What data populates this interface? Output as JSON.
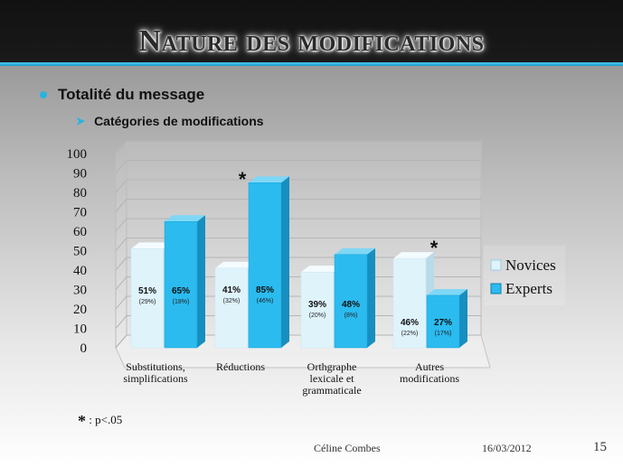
{
  "slide": {
    "title": "Nature des modifications",
    "bullet_level1": "Totalité du message",
    "bullet_level2": "Catégories de modifications",
    "footnote_star": "*",
    "footnote_text": ": p<.05",
    "footer_author": "Céline Combes",
    "footer_date": "16/03/2012",
    "footer_page": "15"
  },
  "colors": {
    "accent": "#2ab2e0",
    "novices_fill": "#dff3fb",
    "experts_fill": "#2bbbef"
  },
  "chart_data": {
    "type": "bar",
    "categories": [
      "Substitutions,\nsimplifications",
      "Réductions",
      "Orthgraphe\nlexicale et\ngrammaticale",
      "Autres\nmodifications"
    ],
    "ylim": [
      0,
      100
    ],
    "yticks": [
      0,
      10,
      20,
      30,
      40,
      50,
      60,
      70,
      80,
      90,
      100
    ],
    "series": [
      {
        "name": "Novices",
        "values": [
          51,
          41,
          39,
          46
        ],
        "labels": [
          "51%",
          "41%",
          "39%",
          "46%"
        ],
        "sublabels": [
          "(29%)",
          "(32%)",
          "(20%)",
          "(22%)"
        ]
      },
      {
        "name": "Experts",
        "values": [
          65,
          85,
          48,
          27
        ],
        "labels": [
          "65%",
          "85%",
          "48%",
          "27%"
        ],
        "sublabels": [
          "(18%)",
          "(46%)",
          "(8%)",
          "(17%)"
        ]
      }
    ],
    "significance_marks": [
      {
        "category": "Réductions",
        "symbol": "*"
      },
      {
        "category": "Autres\nmodifications",
        "symbol": "*"
      }
    ],
    "legend_position": "right",
    "grid": true
  }
}
